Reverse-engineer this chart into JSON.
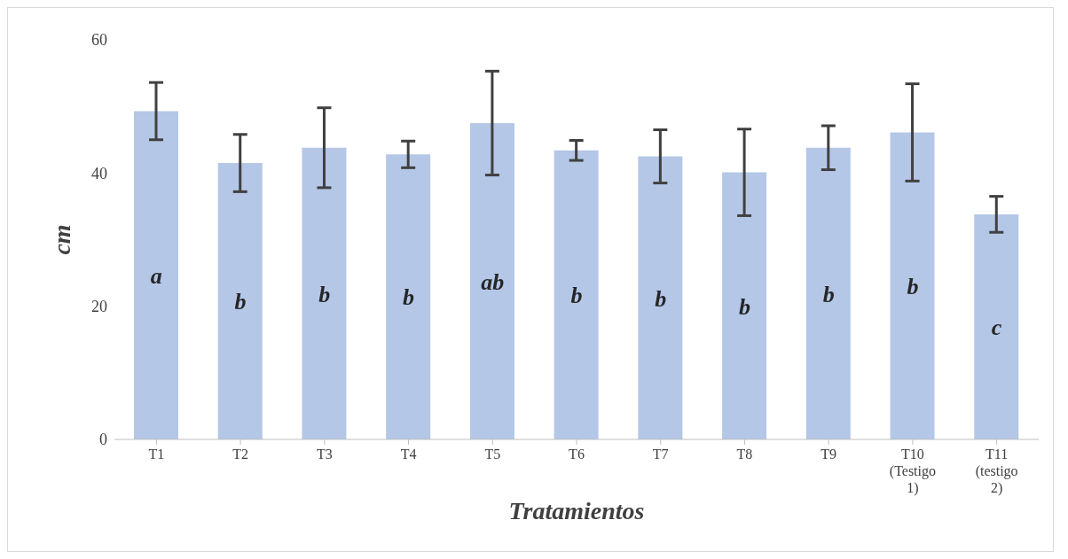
{
  "chart_data": {
    "type": "bar",
    "xlabel": "Tratamientos",
    "ylabel": "cm",
    "categories": [
      "T1",
      "T2",
      "T3",
      "T4",
      "T5",
      "T6",
      "T7",
      "T8",
      "T9",
      "T10 (Testigo 1)",
      "T11 (testigo 2)"
    ],
    "values": [
      49.3,
      41.5,
      43.8,
      42.8,
      47.5,
      43.4,
      42.5,
      40.1,
      43.8,
      46.1,
      33.8
    ],
    "errors": [
      4.3,
      4.3,
      6,
      2,
      7.8,
      1.5,
      4,
      6.5,
      3.3,
      7.3,
      2.7
    ],
    "color": "#b4c7e7",
    "ylim": [
      0,
      60
    ],
    "yticks": [
      0,
      20,
      40,
      60
    ],
    "grid": false,
    "legend": false,
    "annotations": [
      "a",
      "b",
      "b",
      "b",
      "ab",
      "b",
      "b",
      "b",
      "b",
      "b",
      "c"
    ]
  }
}
